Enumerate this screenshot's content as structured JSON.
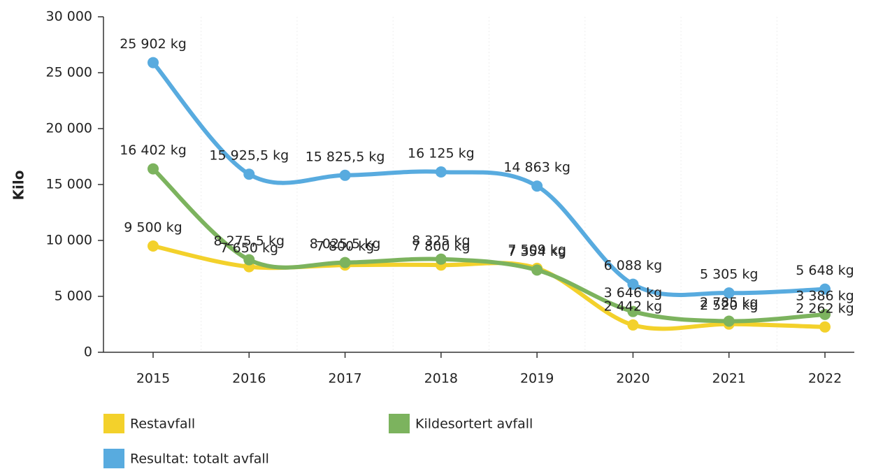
{
  "chart_data": {
    "type": "line",
    "y_label": "Kilo",
    "categories": [
      "2015",
      "2016",
      "2017",
      "2018",
      "2019",
      "2020",
      "2021",
      "2022"
    ],
    "series": [
      {
        "name": "Restavfall",
        "color": "#f3d12b",
        "values": [
          9500,
          7650,
          7800,
          7800,
          7509,
          2442,
          2520,
          2262
        ],
        "value_labels": [
          "9 500 kg",
          "7 650 kg",
          "7 800 kg",
          "7 800 kg",
          "7 509 kg",
          "2 442 kg",
          "2 520 kg",
          "2 262 kg"
        ]
      },
      {
        "name": "Kildesortert avfall",
        "color": "#7cb35e",
        "values": [
          16402,
          8275.5,
          8025.5,
          8325,
          7354,
          3646,
          2785,
          3386
        ],
        "value_labels": [
          "16 402 kg",
          "8 275,5 kg",
          "8 025,5 kg",
          "8 325 kg",
          "7 354 kg",
          "3 646 kg",
          "2 785 kg",
          "3 386 kg"
        ]
      },
      {
        "name": "Resultat: totalt avfall",
        "color": "#58abdf",
        "values": [
          25902,
          15925.5,
          15825.5,
          16125,
          14863,
          6088,
          5305,
          5648
        ],
        "value_labels": [
          "25 902 kg",
          "15 925,5 kg",
          "15 825,5 kg",
          "16 125 kg",
          "14 863 kg",
          "6 088 kg",
          "5 305 kg",
          "5 648 kg"
        ]
      }
    ],
    "ylim": [
      0,
      30000
    ],
    "yticks": [
      0,
      {
        "value": 5000,
        "label": "5 000"
      },
      {
        "value": 10000,
        "label": "10 000"
      },
      {
        "value": 15000,
        "label": "15 000"
      },
      {
        "value": 20000,
        "label": "20 000"
      },
      {
        "value": 25000,
        "label": "25 000"
      },
      {
        "value": 30000,
        "label": "30 000"
      }
    ]
  }
}
